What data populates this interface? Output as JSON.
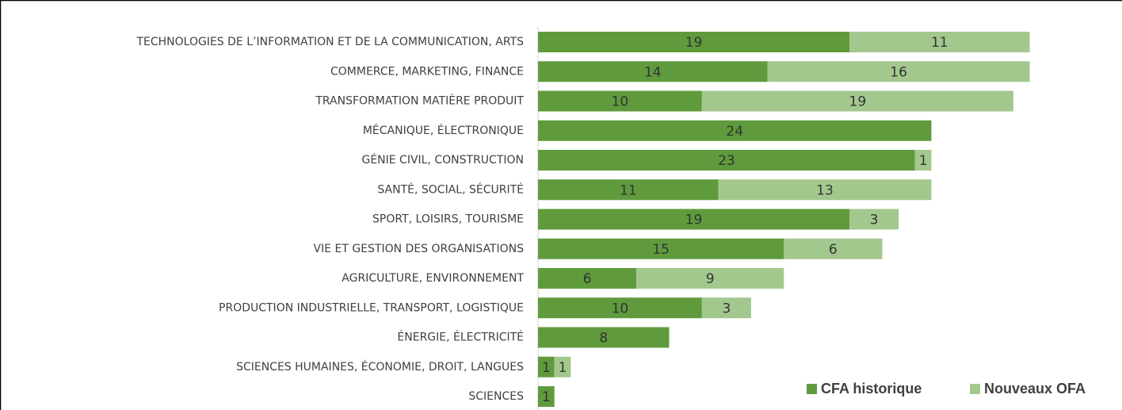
{
  "chart_data": {
    "type": "stacked-bar-horizontal",
    "categories": [
      "TECHNOLOGIES DE L’INFORMATION ET DE LA COMMUNICATION, ARTS",
      "COMMERCE, MARKETING, FINANCE",
      "TRANSFORMATION MATIÈRE PRODUIT",
      "MÉCANIQUE, ÉLECTRONIQUE",
      "GÉNIE CIVIL, CONSTRUCTION",
      "SANTÉ, SOCIAL, SÉCURITÉ",
      "SPORT, LOISIRS, TOURISME",
      "VIE ET GESTION DES ORGANISATIONS",
      "AGRICULTURE, ENVIRONNEMENT",
      "PRODUCTION INDUSTRIELLE, TRANSPORT, LOGISTIQUE",
      "ÉNERGIE, ÉLECTRICITÉ",
      "SCIENCES HUMAINES, ÉCONOMIE, DROIT, LANGUES",
      "SCIENCES"
    ],
    "series": [
      {
        "name": "CFA historique",
        "color": "#5f9b3c",
        "values": [
          19,
          14,
          10,
          24,
          23,
          11,
          19,
          15,
          6,
          10,
          8,
          1,
          1
        ]
      },
      {
        "name": "Nouveaux OFA",
        "color": "#a3c88e",
        "values": [
          11,
          16,
          19,
          null,
          1,
          13,
          3,
          6,
          9,
          3,
          null,
          1,
          null
        ]
      }
    ],
    "xlim": [
      0,
      35
    ],
    "legend": "bottom-right"
  }
}
